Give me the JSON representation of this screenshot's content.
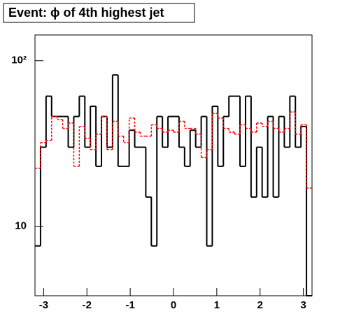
{
  "chart_data": {
    "type": "histogram",
    "title": "Event: ϕ of 4th highest jet",
    "bins": [
      -3.2,
      -3.072,
      -2.944,
      -2.816,
      -2.688,
      -2.56,
      -2.432,
      -2.304,
      -2.176,
      -2.048,
      -1.92,
      -1.792,
      -1.664,
      -1.536,
      -1.408,
      -1.28,
      -1.152,
      -1.024,
      -0.896,
      -0.768,
      -0.64,
      -0.512,
      -0.384,
      -0.256,
      -0.128,
      0,
      0.128,
      0.256,
      0.384,
      0.512,
      0.64,
      0.768,
      0.896,
      1.024,
      1.152,
      1.28,
      1.408,
      1.536,
      1.664,
      1.792,
      1.92,
      2.048,
      2.176,
      2.304,
      2.432,
      2.56,
      2.688,
      2.816,
      2.944,
      3.072,
      3.2
    ],
    "series": [
      {
        "color": "#000000",
        "dash": false,
        "values": [
          7.6,
          30,
          61,
          46,
          46,
          46,
          30,
          46,
          61,
          30,
          53,
          23,
          46,
          30,
          82,
          23,
          23,
          38,
          30,
          30,
          15,
          7.6,
          46,
          30,
          46,
          46,
          30,
          23,
          38,
          30,
          46,
          7.6,
          53,
          23,
          46,
          61,
          61,
          23,
          61,
          15,
          30,
          15,
          46,
          15,
          46,
          30,
          61,
          30,
          40,
          0
        ]
      },
      {
        "color": "#ff0000",
        "dash": true,
        "values": [
          22.4,
          32,
          33,
          46,
          44,
          39,
          42,
          23,
          40,
          34,
          29,
          36,
          46,
          29,
          43,
          35,
          32,
          45,
          37,
          35,
          35,
          41,
          39,
          37,
          38,
          37,
          43,
          39,
          39,
          36,
          26,
          29,
          48,
          45,
          39,
          37,
          36,
          41,
          39,
          37,
          42,
          40,
          43,
          39,
          37,
          39,
          49,
          36,
          41,
          17
        ]
      }
    ],
    "xlim": [
      -3.2,
      3.2
    ],
    "xticks": [
      -3,
      -2,
      -1,
      0,
      1,
      2,
      3
    ],
    "ylim": [
      3.8,
      143
    ],
    "yticks": [
      {
        "value": 10,
        "label": "10"
      },
      {
        "value": 100,
        "label": "10²"
      }
    ],
    "log_y": true
  }
}
